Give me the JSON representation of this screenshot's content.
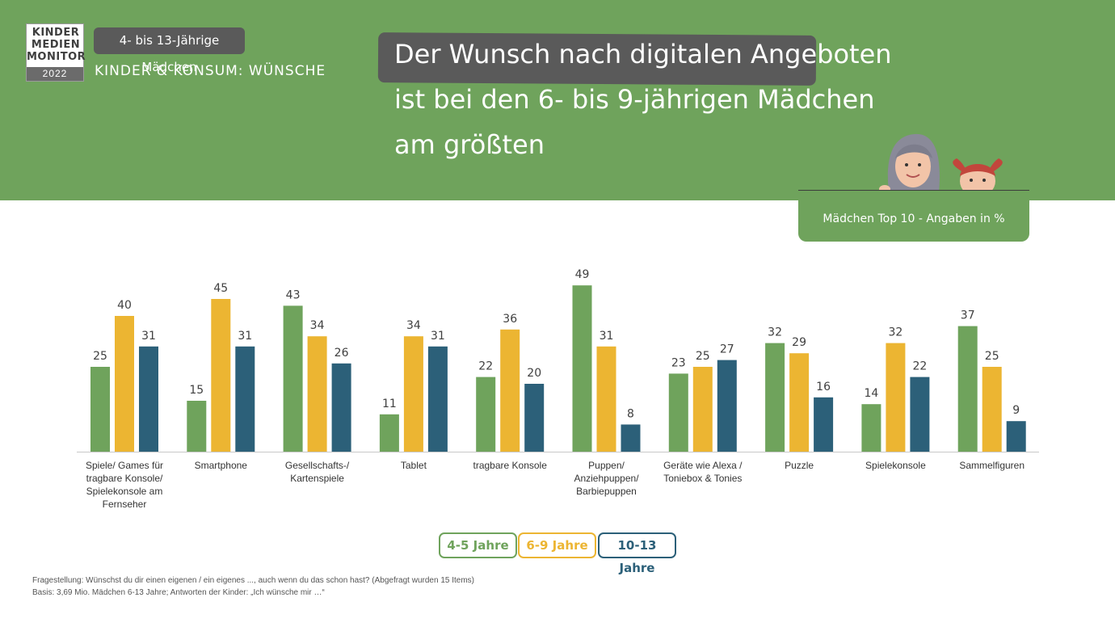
{
  "logo": {
    "line1": "KINDER",
    "line2": "MEDIEN",
    "line3": "MONITOR",
    "year": "2022"
  },
  "header": {
    "badge": "4- bis 13-Jährige Mädchen",
    "subtitle": "KINDER & KONSUM: WÜNSCHE",
    "title_line1": "Der Wunsch nach digitalen Angeboten",
    "title_line2": "ist bei den 6- bis 9-jährigen Mädchen",
    "title_line3": "am größten",
    "info": "Mädchen Top 10 - Angaben in %"
  },
  "colors": {
    "green": "#6fa35c",
    "yellow": "#ecb532",
    "blue": "#2c6079"
  },
  "chart_data": {
    "type": "bar",
    "categories": [
      "Spiele/ Games für tragbare Konsole/ Spielekonsole am Fernseher",
      "Smartphone",
      "Gesellschafts-/ Kartenspiele",
      "Tablet",
      "tragbare Konsole",
      "Puppen/ Anziehpuppen/ Barbiepuppen",
      "Geräte wie Alexa / Toniebox & Tonies",
      "Puzzle",
      "Spielekonsole",
      "Sammelfiguren"
    ],
    "category_lines": [
      [
        "Spiele/ Games für",
        "tragbare Konsole/",
        "Spielekonsole am",
        "Fernseher"
      ],
      [
        "Smartphone"
      ],
      [
        "Gesellschafts-/",
        "Kartenspiele"
      ],
      [
        "Tablet"
      ],
      [
        "tragbare Konsole"
      ],
      [
        "Puppen/",
        "Anziehpuppen/",
        "Barbiepuppen"
      ],
      [
        "Geräte wie Alexa /",
        "Toniebox & Tonies"
      ],
      [
        "Puzzle"
      ],
      [
        "Spielekonsole"
      ],
      [
        "Sammelfiguren"
      ]
    ],
    "series": [
      {
        "name": "4-5 Jahre",
        "color": "#6fa35c",
        "values": [
          25,
          15,
          43,
          11,
          22,
          49,
          23,
          32,
          14,
          37
        ]
      },
      {
        "name": "6-9 Jahre",
        "color": "#ecb532",
        "values": [
          40,
          45,
          34,
          34,
          36,
          31,
          25,
          29,
          32,
          25
        ]
      },
      {
        "name": "10-13 Jahre",
        "color": "#2c6079",
        "values": [
          31,
          31,
          26,
          31,
          20,
          8,
          27,
          16,
          22,
          9
        ]
      }
    ],
    "ylim": [
      0,
      50
    ],
    "legend": "bottom-center",
    "grid": false
  },
  "footnote": {
    "line1": "Fragestellung: Wünschst du dir einen eigenen / ein eigenes ..., auch wenn du das schon hast? (Abgefragt wurden 15 Items)",
    "line2": "Basis: 3,69 Mio. Mädchen 6-13 Jahre; Antworten der Kinder: „Ich wünsche mir …“"
  }
}
